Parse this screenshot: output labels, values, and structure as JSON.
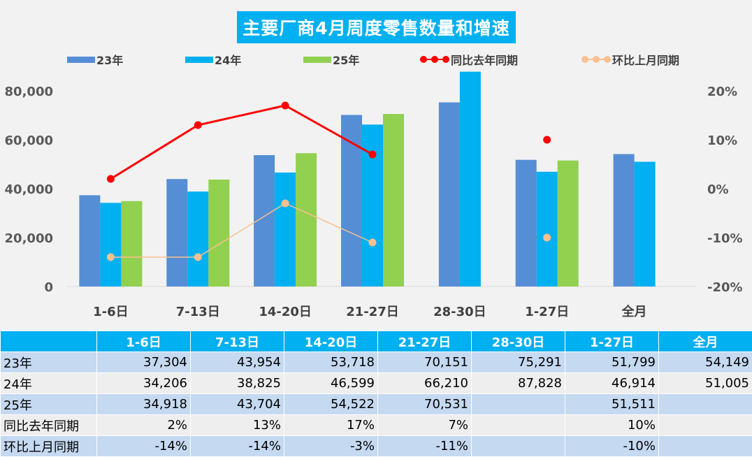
{
  "chart_data": {
    "type": "bar",
    "title": "主要厂商4月周度零售数量和增速",
    "categories": [
      "1-6日",
      "7-13日",
      "14-20日",
      "21-27日",
      "28-30日",
      "1-27日",
      "全月"
    ],
    "series": [
      {
        "name": "23年",
        "type": "bar",
        "axis": "left",
        "color": "#558ed5",
        "values": [
          37304,
          43954,
          53718,
          70151,
          75291,
          51799,
          54149
        ]
      },
      {
        "name": "24年",
        "type": "bar",
        "axis": "left",
        "color": "#00b0f0",
        "values": [
          34206,
          38825,
          46599,
          66210,
          87828,
          46914,
          51005
        ]
      },
      {
        "name": "25年",
        "type": "bar",
        "axis": "left",
        "color": "#92d050",
        "values": [
          34918,
          43704,
          54522,
          70531,
          null,
          51511,
          null
        ]
      },
      {
        "name": "同比去年同期",
        "type": "line",
        "axis": "right",
        "color": "#ff0000",
        "values": [
          2,
          13,
          17,
          7,
          null,
          10,
          null
        ],
        "labels": [
          "2%",
          "13%",
          "17%",
          "7%",
          "",
          "10%",
          ""
        ]
      },
      {
        "name": "环比上月同期",
        "type": "line",
        "axis": "right",
        "color": "#fac090",
        "values": [
          -14,
          -14,
          -3,
          -11,
          null,
          -10,
          null
        ],
        "labels": [
          "-14%",
          "-14%",
          "-3%",
          "-11%",
          "",
          "-10%",
          ""
        ]
      }
    ],
    "y_left": {
      "min": 0,
      "max": 80000,
      "ticks": [
        "0",
        "20,000",
        "40,000",
        "60,000",
        "80,000"
      ]
    },
    "y_right": {
      "min": -20,
      "max": 20,
      "ticks": [
        "-20%",
        "-10%",
        "0%",
        "10%",
        "20%"
      ]
    },
    "line_segments": [
      [
        0,
        1,
        2,
        3
      ]
    ],
    "grid": false,
    "legend": "top"
  },
  "table": {
    "header": [
      "1-6日",
      "7-13日",
      "14-20日",
      "21-27日",
      "28-30日",
      "1-27日",
      "全月"
    ],
    "rows": [
      {
        "label": "23年",
        "cells": [
          "37,304",
          "43,954",
          "53,718",
          "70,151",
          "75,291",
          "51,799",
          "54,149"
        ]
      },
      {
        "label": "24年",
        "cells": [
          "34,206",
          "38,825",
          "46,599",
          "66,210",
          "87,828",
          "46,914",
          "51,005"
        ]
      },
      {
        "label": "25年",
        "cells": [
          "34,918",
          "43,704",
          "54,522",
          "70,531",
          "",
          "51,511",
          ""
        ]
      },
      {
        "label": "同比去年同期",
        "cells": [
          "2%",
          "13%",
          "17%",
          "7%",
          "",
          "10%",
          ""
        ]
      },
      {
        "label": "环比上月同期",
        "cells": [
          "-14%",
          "-14%",
          "-3%",
          "-11%",
          "",
          "-10%",
          ""
        ]
      }
    ]
  }
}
